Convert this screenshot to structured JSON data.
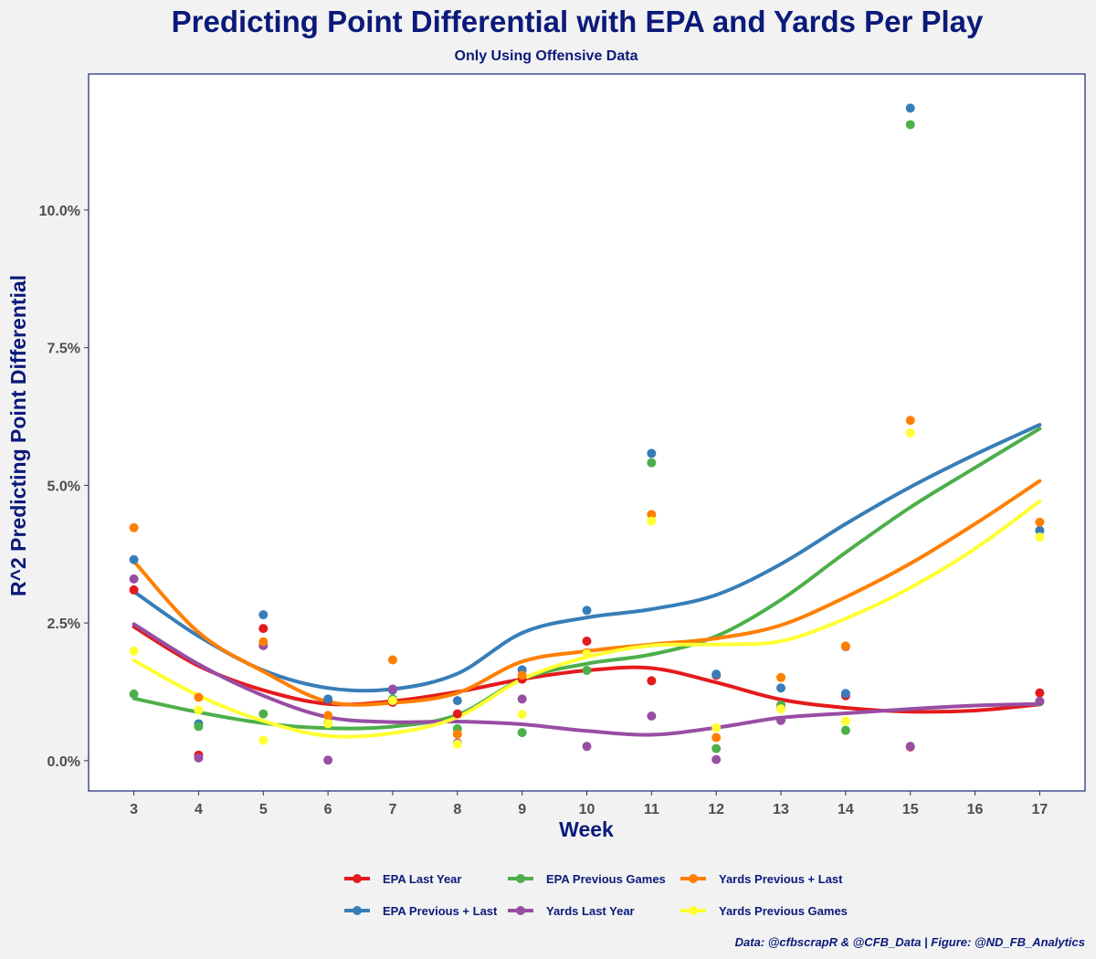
{
  "chart_data": {
    "type": "scatter",
    "title": "Predicting Point Differential with EPA and Yards Per Play",
    "subtitle": "Only Using Offensive Data",
    "xlabel": "Week",
    "ylabel": "R^2 Predicting Point Differential",
    "caption": "Data: @cfbscrapR & @CFB_Data | Figure: @ND_FB_Analytics",
    "xlim": [
      2.3,
      17.7
    ],
    "ylim": [
      -0.0055,
      0.1247
    ],
    "x_ticks": [
      3,
      4,
      5,
      6,
      7,
      8,
      9,
      10,
      11,
      12,
      13,
      14,
      15,
      16,
      17
    ],
    "x_tick_labels": [
      "3",
      "4",
      "5",
      "6",
      "7",
      "8",
      "9",
      "10",
      "11",
      "12",
      "13",
      "14",
      "15",
      "16",
      "17"
    ],
    "y_ticks": [
      0,
      0.025,
      0.05,
      0.075,
      0.1
    ],
    "y_tick_labels": [
      "0.0%",
      "2.5%",
      "5.0%",
      "7.5%",
      "10.0%"
    ],
    "grid": false,
    "legend_position": "bottom",
    "x": [
      3,
      4,
      5,
      6,
      7,
      8,
      9,
      10,
      11,
      12,
      13,
      14,
      15,
      17
    ],
    "series": [
      {
        "name": "EPA Last Year",
        "color": "#e41a1c",
        "points": [
          0.031,
          0.001,
          0.024,
          0.011,
          0.0106,
          0.0085,
          0.0148,
          0.0217,
          0.0145,
          0.0155,
          0.0095,
          0.0118,
          0.0025,
          0.0123
        ],
        "smooth_x": [
          3,
          4,
          5,
          6,
          7,
          8,
          9,
          10,
          11,
          12,
          13,
          14,
          15,
          16,
          17
        ],
        "smooth_y": [
          0.0243,
          0.0172,
          0.0128,
          0.0103,
          0.0108,
          0.0125,
          0.0148,
          0.0164,
          0.0168,
          0.0142,
          0.0111,
          0.0096,
          0.0089,
          0.0091,
          0.0102
        ]
      },
      {
        "name": "EPA Previous + Last",
        "color": "#377eb8",
        "points": [
          0.0365,
          0.0067,
          0.0265,
          0.0112,
          0.0128,
          0.0109,
          0.0165,
          0.0273,
          0.0558,
          0.0157,
          0.0132,
          0.0122,
          0.1185,
          0.0418
        ],
        "smooth_x": [
          3,
          4,
          5,
          6,
          7,
          8,
          9,
          10,
          11,
          12,
          13,
          14,
          15,
          16,
          17
        ],
        "smooth_y": [
          0.0307,
          0.0226,
          0.0164,
          0.0132,
          0.013,
          0.0158,
          0.0232,
          0.026,
          0.0275,
          0.0301,
          0.0357,
          0.043,
          0.0497,
          0.0556,
          0.061
        ]
      },
      {
        "name": "EPA Previous Games",
        "color": "#4daf4a",
        "points": [
          0.0121,
          0.0062,
          0.0085,
          0.0068,
          0.0112,
          0.0058,
          0.0051,
          0.0164,
          0.0541,
          0.0022,
          0.0101,
          0.0055,
          0.1155,
          0.0107
        ],
        "smooth_x": [
          3,
          4,
          5,
          6,
          7,
          8,
          9,
          10,
          11,
          12,
          13,
          14,
          15,
          16,
          17
        ],
        "smooth_y": [
          0.0113,
          0.0088,
          0.0068,
          0.0059,
          0.0062,
          0.0083,
          0.0148,
          0.0176,
          0.0193,
          0.0226,
          0.0292,
          0.0378,
          0.046,
          0.0532,
          0.0603
        ]
      },
      {
        "name": "Yards Last Year",
        "color": "#984ea3",
        "points": [
          0.033,
          0.0005,
          0.0209,
          0.0001,
          0.013,
          0.0032,
          0.0112,
          0.0026,
          0.0081,
          0.0002,
          0.0073,
          0.0207,
          0.0026,
          0.0108
        ],
        "smooth_x": [
          3,
          4,
          5,
          6,
          7,
          8,
          9,
          10,
          11,
          12,
          13,
          14,
          15,
          16,
          17
        ],
        "smooth_y": [
          0.0248,
          0.0175,
          0.0118,
          0.0079,
          0.007,
          0.0071,
          0.0066,
          0.0054,
          0.0047,
          0.006,
          0.0078,
          0.0086,
          0.0094,
          0.01,
          0.0103
        ]
      },
      {
        "name": "Yards Previous + Last",
        "color": "#ff7f00",
        "points": [
          0.0423,
          0.0115,
          0.0216,
          0.0082,
          0.0183,
          0.0048,
          0.0155,
          0.0196,
          0.0447,
          0.0042,
          0.0151,
          0.0208,
          0.0618,
          0.0433
        ],
        "smooth_x": [
          3,
          4,
          5,
          6,
          7,
          8,
          9,
          10,
          11,
          12,
          13,
          14,
          15,
          16,
          17
        ],
        "smooth_y": [
          0.0362,
          0.0233,
          0.0162,
          0.0107,
          0.0105,
          0.0123,
          0.018,
          0.0199,
          0.0211,
          0.0222,
          0.0246,
          0.0297,
          0.0358,
          0.043,
          0.0508
        ]
      },
      {
        "name": "Yards Previous Games",
        "color": "#ffff33",
        "points": [
          0.0199,
          0.0092,
          0.0037,
          0.0067,
          0.0109,
          0.003,
          0.0084,
          0.0194,
          0.0435,
          0.006,
          0.0094,
          0.0072,
          0.0595,
          0.0406
        ],
        "smooth_x": [
          3,
          4,
          5,
          6,
          7,
          8,
          9,
          10,
          11,
          12,
          13,
          14,
          15,
          16,
          17
        ],
        "smooth_y": [
          0.0182,
          0.0118,
          0.0072,
          0.0045,
          0.005,
          0.0079,
          0.0148,
          0.0188,
          0.0209,
          0.0211,
          0.0217,
          0.0258,
          0.0314,
          0.0385,
          0.0471
        ]
      }
    ]
  }
}
